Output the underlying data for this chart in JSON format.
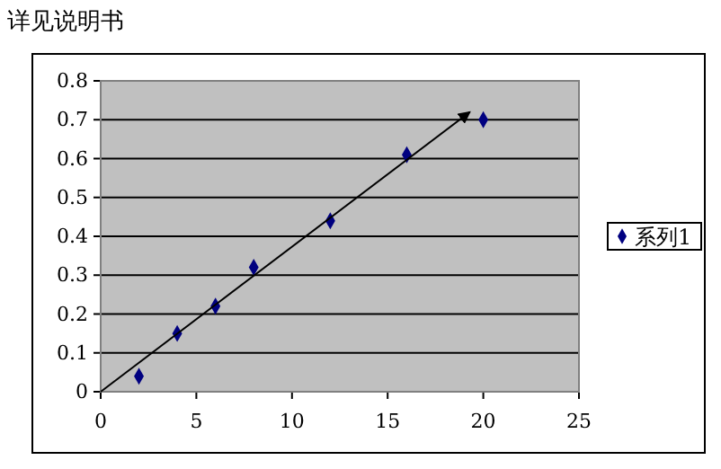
{
  "chart_data": {
    "type": "scatter",
    "title": "详见说明书",
    "x": [
      2,
      4,
      6,
      8,
      12,
      16,
      20
    ],
    "series": [
      {
        "name": "系列1",
        "color": "#000080",
        "values": [
          0.04,
          0.15,
          0.22,
          0.32,
          0.44,
          0.61,
          0.7
        ],
        "marker": "diamond"
      },
      {
        "type": "line",
        "color": "#000000",
        "x": [
          0,
          19.3
        ],
        "values": [
          0,
          0.72
        ],
        "marker": "none"
      }
    ],
    "xlim": [
      0,
      25
    ],
    "xticks": [
      0,
      5,
      10,
      15,
      20,
      25
    ],
    "ylim": [
      0,
      0.8
    ],
    "yticks": [
      0,
      0.1,
      0.2,
      0.3,
      0.4,
      0.5,
      0.6,
      0.7,
      0.8
    ],
    "grid": "y",
    "legend": "right"
  }
}
